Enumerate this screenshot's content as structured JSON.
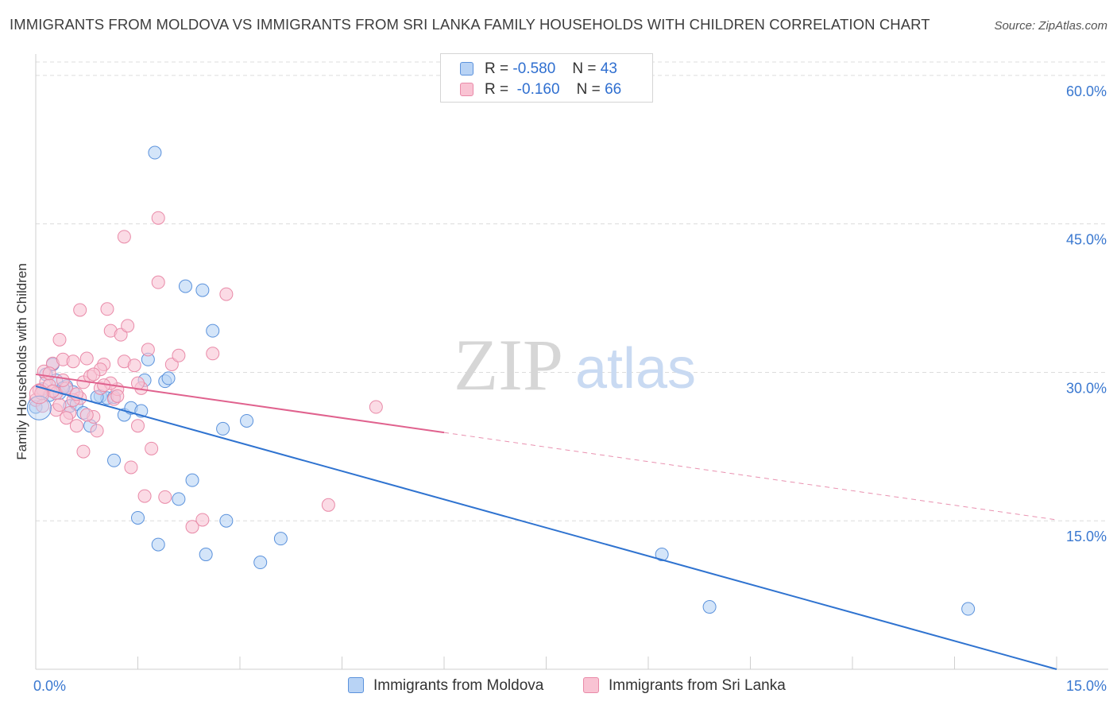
{
  "title": "IMMIGRANTS FROM MOLDOVA VS IMMIGRANTS FROM SRI LANKA FAMILY HOUSEHOLDS WITH CHILDREN CORRELATION CHART",
  "source": "Source: ZipAtlas.com",
  "watermark": {
    "zip": "ZIP",
    "atlas": "atlas"
  },
  "legend": {
    "rows": [
      {
        "r_label": "R =",
        "r_value": "-0.580",
        "n_label": "N =",
        "n_value": "43"
      },
      {
        "r_label": "R =",
        "r_value": "-0.160",
        "n_label": "N =",
        "n_value": "66"
      }
    ]
  },
  "colors": {
    "moldova_fill": "#b8d3f5",
    "moldova_stroke": "#5b92dc",
    "moldova_line": "#2f73d0",
    "srilanka_fill": "#f9c3d3",
    "srilanka_stroke": "#e98aa8",
    "srilanka_line": "#e0628e",
    "tick_label": "#3a78d0",
    "grid": "#dcdcdc"
  },
  "chart_data": {
    "type": "scatter",
    "title": "IMMIGRANTS FROM MOLDOVA VS IMMIGRANTS FROM SRI LANKA FAMILY HOUSEHOLDS WITH CHILDREN CORRELATION CHART",
    "xlabel": "",
    "ylabel": "Family Households with Children",
    "xlim": [
      0,
      15
    ],
    "ylim": [
      0,
      62
    ],
    "x_tick_labels": {
      "left": "0.0%",
      "right": "15.0%"
    },
    "y_ticks": [
      {
        "value": 15,
        "label": "15.0%"
      },
      {
        "value": 30,
        "label": "30.0%"
      },
      {
        "value": 45,
        "label": "45.0%"
      },
      {
        "value": 60,
        "label": "60.0%"
      }
    ],
    "grid": true,
    "series": [
      {
        "name": "Immigrants from Moldova",
        "R": -0.58,
        "N": 43,
        "trend": {
          "x0": 0,
          "y0": 28.6,
          "x1": 15,
          "y1": 0,
          "dashed_from": null
        },
        "points": [
          [
            0.0,
            26.5
          ],
          [
            0.1,
            28.3
          ],
          [
            0.15,
            29.8
          ],
          [
            0.2,
            27.7
          ],
          [
            0.25,
            30.8
          ],
          [
            0.3,
            29.2
          ],
          [
            0.35,
            27.9
          ],
          [
            0.45,
            28.6
          ],
          [
            0.5,
            26.6
          ],
          [
            0.55,
            28.0
          ],
          [
            0.6,
            26.8
          ],
          [
            0.7,
            25.9
          ],
          [
            0.8,
            24.6
          ],
          [
            0.95,
            27.6
          ],
          [
            1.05,
            27.4
          ],
          [
            1.15,
            27.5
          ],
          [
            1.3,
            25.7
          ],
          [
            1.4,
            26.4
          ],
          [
            1.55,
            26.1
          ],
          [
            1.6,
            29.2
          ],
          [
            1.65,
            31.3
          ],
          [
            1.75,
            52.2
          ],
          [
            1.9,
            29.1
          ],
          [
            1.95,
            29.4
          ],
          [
            2.2,
            38.7
          ],
          [
            2.45,
            38.3
          ],
          [
            2.6,
            34.2
          ],
          [
            2.75,
            24.3
          ],
          [
            3.1,
            25.1
          ],
          [
            1.15,
            21.1
          ],
          [
            2.3,
            19.1
          ],
          [
            2.1,
            17.2
          ],
          [
            1.5,
            15.3
          ],
          [
            2.8,
            15.0
          ],
          [
            1.8,
            12.6
          ],
          [
            2.5,
            11.6
          ],
          [
            3.6,
            13.2
          ],
          [
            3.3,
            10.8
          ],
          [
            9.2,
            11.6
          ],
          [
            9.9,
            6.3
          ],
          [
            13.7,
            6.1
          ],
          [
            0.9,
            27.5
          ],
          [
            0.4,
            28.4
          ]
        ]
      },
      {
        "name": "Immigrants from Sri Lanka",
        "R": -0.16,
        "N": 66,
        "trend": {
          "x0": 0,
          "y0": 29.8,
          "x1": 15,
          "y1": 15.1,
          "dashed_from": 6.0
        },
        "points": [
          [
            0.0,
            27.2
          ],
          [
            0.05,
            28.2
          ],
          [
            0.1,
            26.6
          ],
          [
            0.15,
            29.0
          ],
          [
            0.2,
            28.7
          ],
          [
            0.25,
            30.9
          ],
          [
            0.3,
            27.9
          ],
          [
            0.35,
            33.3
          ],
          [
            0.4,
            31.3
          ],
          [
            0.45,
            28.4
          ],
          [
            0.5,
            25.9
          ],
          [
            0.55,
            31.1
          ],
          [
            0.6,
            24.6
          ],
          [
            0.65,
            27.4
          ],
          [
            0.7,
            29.0
          ],
          [
            0.75,
            31.4
          ],
          [
            0.8,
            29.6
          ],
          [
            0.85,
            25.5
          ],
          [
            0.9,
            24.1
          ],
          [
            0.95,
            28.4
          ],
          [
            1.0,
            30.8
          ],
          [
            1.05,
            36.4
          ],
          [
            1.1,
            34.2
          ],
          [
            1.15,
            27.3
          ],
          [
            1.2,
            28.3
          ],
          [
            1.25,
            33.8
          ],
          [
            1.3,
            31.1
          ],
          [
            1.35,
            34.7
          ],
          [
            1.4,
            20.4
          ],
          [
            1.45,
            30.7
          ],
          [
            1.5,
            24.6
          ],
          [
            1.55,
            28.4
          ],
          [
            1.6,
            17.5
          ],
          [
            1.65,
            32.3
          ],
          [
            1.7,
            22.3
          ],
          [
            1.8,
            39.1
          ],
          [
            1.9,
            17.4
          ],
          [
            2.0,
            30.8
          ],
          [
            2.1,
            31.7
          ],
          [
            2.3,
            14.4
          ],
          [
            2.45,
            15.1
          ],
          [
            2.6,
            31.9
          ],
          [
            2.8,
            37.9
          ],
          [
            1.3,
            43.7
          ],
          [
            1.8,
            45.6
          ],
          [
            0.65,
            36.3
          ],
          [
            0.7,
            22.0
          ],
          [
            0.95,
            30.3
          ],
          [
            1.1,
            28.9
          ],
          [
            0.55,
            27.2
          ],
          [
            0.45,
            25.4
          ],
          [
            0.25,
            28.1
          ],
          [
            0.12,
            30.1
          ],
          [
            0.3,
            26.2
          ],
          [
            0.85,
            29.8
          ],
          [
            1.0,
            28.7
          ],
          [
            1.2,
            27.6
          ],
          [
            0.4,
            29.2
          ],
          [
            0.6,
            27.8
          ],
          [
            0.35,
            26.7
          ],
          [
            0.75,
            25.7
          ],
          [
            1.5,
            28.9
          ],
          [
            4.3,
            16.6
          ],
          [
            5.0,
            26.5
          ],
          [
            0.2,
            29.9
          ],
          [
            0.08,
            27.9
          ]
        ]
      }
    ]
  },
  "bottom_legend": {
    "items": [
      {
        "label": "Immigrants from Moldova"
      },
      {
        "label": "Immigrants from Sri Lanka"
      }
    ]
  }
}
